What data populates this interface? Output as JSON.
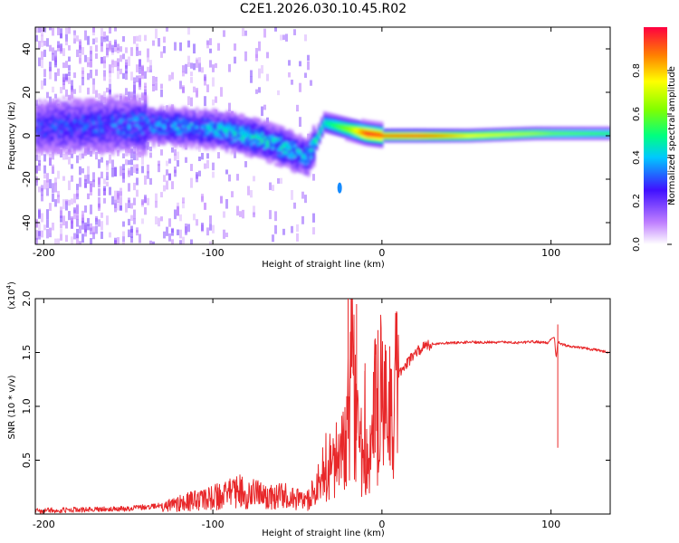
{
  "title": "C2E1.2026.030.10.45.R02",
  "colors": {
    "line": "#e8282a",
    "axis": "#000000",
    "background": "#ffffff"
  },
  "chart_data": [
    {
      "type": "heatmap",
      "name": "spectrogram",
      "xlabel": "Height of straight line (km)",
      "ylabel": "Frequency (Hz)",
      "xlim": [
        -205,
        135
      ],
      "ylim": [
        -50,
        50
      ],
      "xticks": [
        -200,
        -100,
        0,
        100
      ],
      "xtick_labels": [
        "-200",
        "-100",
        "0",
        "100"
      ],
      "yticks": [
        -40,
        -20,
        0,
        20,
        40
      ],
      "ytick_labels": [
        "-40",
        "-20",
        "0",
        "20",
        "40"
      ],
      "colorbar": {
        "label": "Normalized spectral amplitude",
        "range": [
          0,
          1
        ],
        "ticks": [
          0.0,
          0.2,
          0.4,
          0.6,
          0.8
        ],
        "tick_labels": [
          "0.0",
          "0.2",
          "0.4",
          "0.6",
          "0.8"
        ]
      },
      "ridge": [
        {
          "x": -200,
          "f": 4,
          "a": 0.3
        },
        {
          "x": -150,
          "f": 5,
          "a": 0.35
        },
        {
          "x": -120,
          "f": 4,
          "a": 0.4
        },
        {
          "x": -100,
          "f": 3,
          "a": 0.4
        },
        {
          "x": -80,
          "f": 0,
          "a": 0.45
        },
        {
          "x": -60,
          "f": -5,
          "a": 0.45
        },
        {
          "x": -45,
          "f": -10,
          "a": 0.4
        },
        {
          "x": -40,
          "f": -3,
          "a": 0.5
        },
        {
          "x": -35,
          "f": 6,
          "a": 0.45
        },
        {
          "x": -20,
          "f": 3,
          "a": 0.65
        },
        {
          "x": -10,
          "f": 1,
          "a": 0.95
        },
        {
          "x": 0,
          "f": 0,
          "a": 0.9
        },
        {
          "x": 20,
          "f": 0,
          "a": 0.95
        },
        {
          "x": 50,
          "f": 0,
          "a": 0.75
        },
        {
          "x": 90,
          "f": 1,
          "a": 0.65
        },
        {
          "x": 100,
          "f": 1,
          "a": 0.6
        },
        {
          "x": 135,
          "f": 1,
          "a": 0.55
        }
      ],
      "isolated_blob": {
        "x": -25,
        "f": -24,
        "a": 0.35
      }
    },
    {
      "type": "line",
      "name": "snr",
      "xlabel": "Height of straight line (km)",
      "ylabel": "SNR (10 * v/v)",
      "multiplier_label": "(x10",
      "multiplier_exponent": "4",
      "multiplier_close": ")",
      "xlim": [
        -205,
        135
      ],
      "ylim": [
        0,
        20000
      ],
      "xticks": [
        -200,
        -100,
        0,
        100
      ],
      "xtick_labels": [
        "-200",
        "-100",
        "0",
        "100"
      ],
      "yticks": [
        5000,
        10000,
        15000,
        20000
      ],
      "ytick_labels": [
        "0.5",
        "1.0",
        "1.5",
        "2.0"
      ],
      "series": [
        {
          "name": "SNR",
          "x": [
            -205,
            -180,
            -150,
            -130,
            -110,
            -95,
            -85,
            -75,
            -65,
            -55,
            -45,
            -40,
            -35,
            -30,
            -25,
            -22,
            -20,
            -18,
            -15,
            -12,
            -10,
            -8,
            -5,
            -2,
            0,
            3,
            5,
            8,
            10,
            15,
            20,
            25,
            30,
            40,
            50,
            60,
            70,
            80,
            90,
            98,
            102,
            103,
            104,
            106,
            110,
            120,
            135
          ],
          "y": [
            300,
            400,
            500,
            800,
            1500,
            2000,
            2500,
            2200,
            1800,
            2000,
            1200,
            2500,
            4500,
            6000,
            5500,
            9000,
            12000,
            17000,
            10000,
            7000,
            9000,
            6000,
            11000,
            13000,
            12000,
            10000,
            11000,
            12500,
            13000,
            14000,
            15000,
            15500,
            15800,
            15900,
            15950,
            15950,
            15950,
            15900,
            16000,
            15900,
            16500,
            14500,
            16000,
            15800,
            15600,
            15400,
            15000
          ]
        }
      ],
      "spikes": [
        {
          "x": -20,
          "y": 20000
        },
        {
          "x": -15,
          "y": 19500
        },
        {
          "x": -10,
          "y": 14000
        },
        {
          "x": -4,
          "y": 16300
        },
        {
          "x": 104,
          "y": 17600
        }
      ]
    }
  ]
}
